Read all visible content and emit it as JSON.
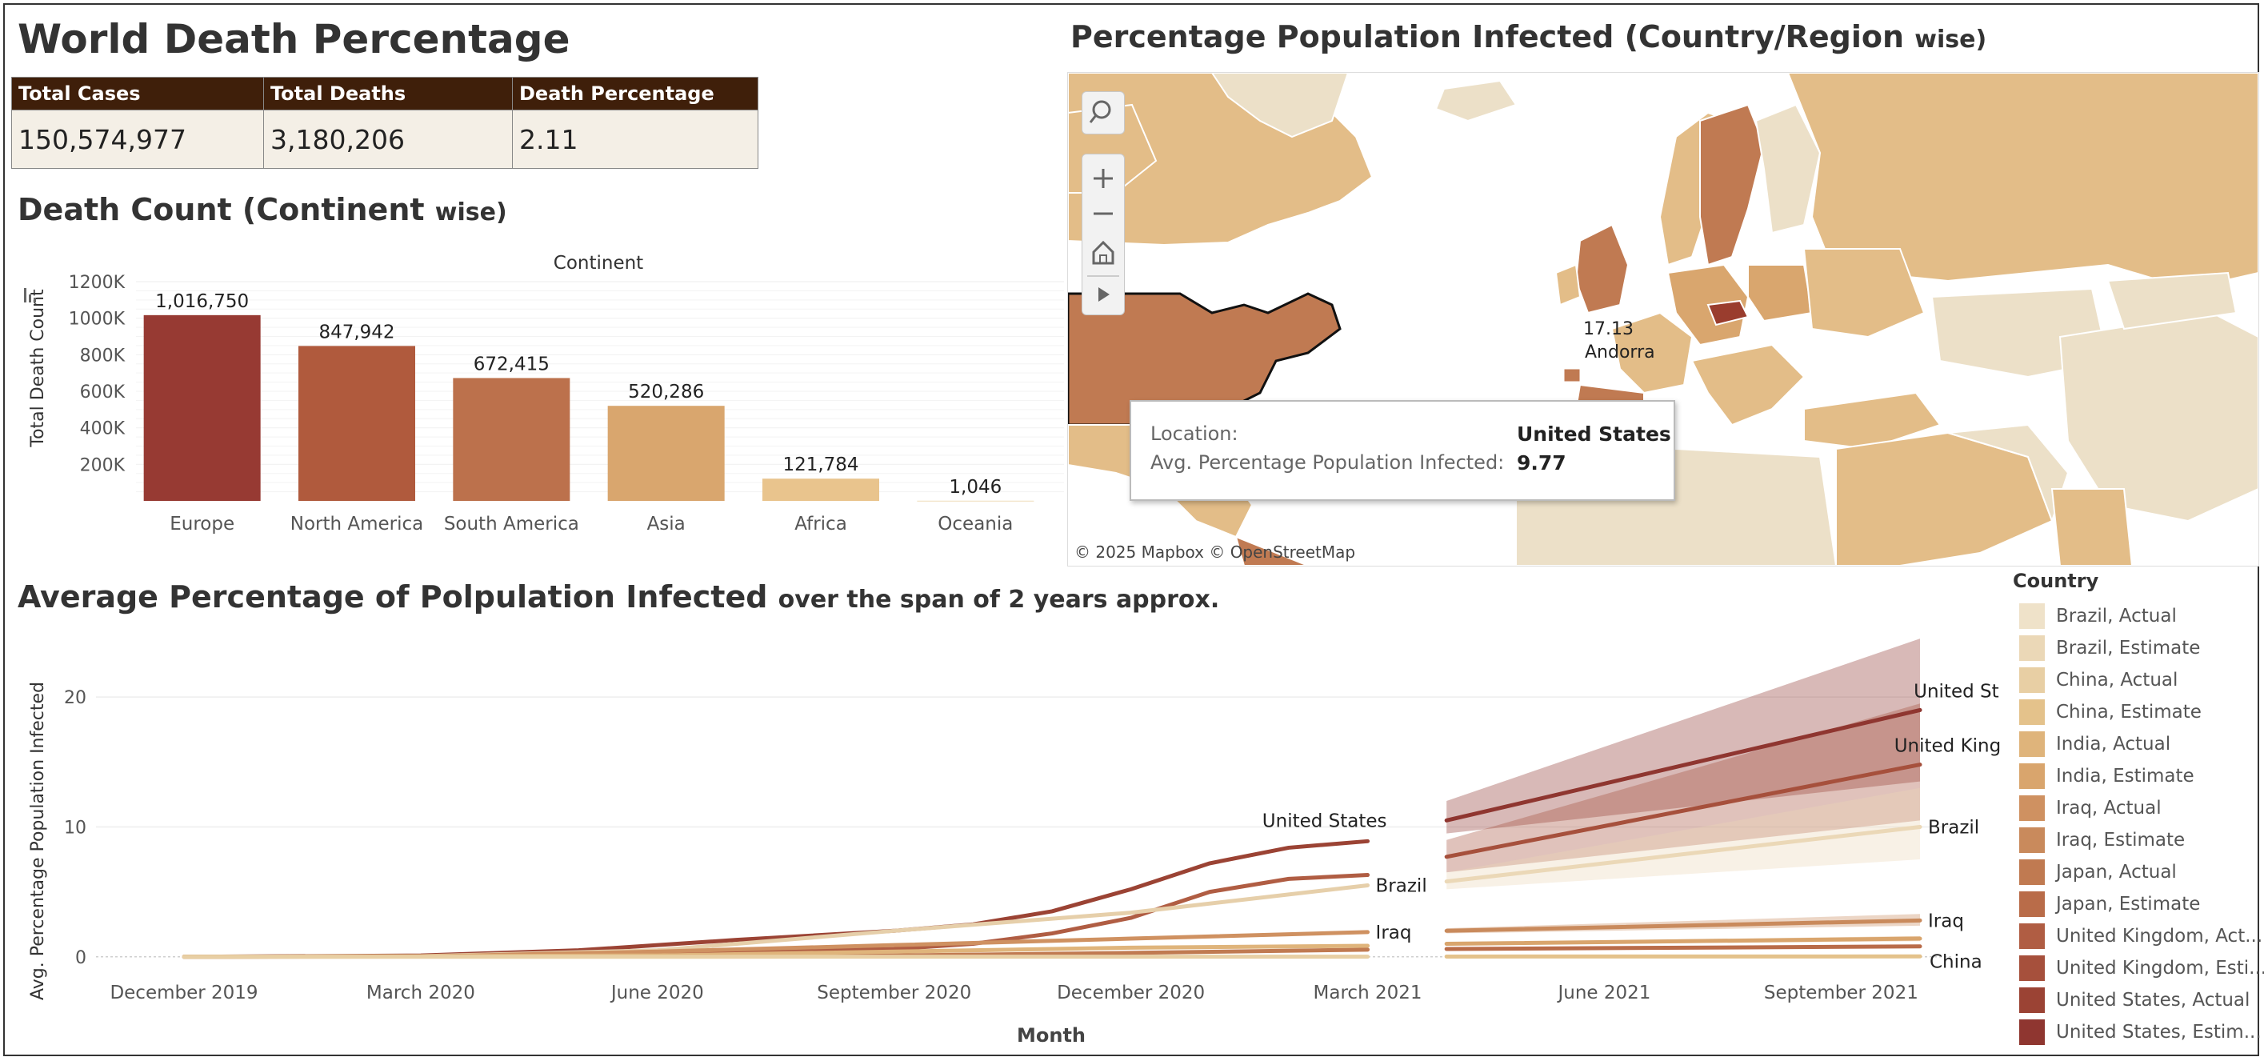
{
  "dashboard": {
    "title": "World Death Percentage",
    "kpi": {
      "headers": [
        "Total Cases",
        "Total Deaths",
        "Death Percentage"
      ],
      "values": [
        "150,574,977",
        "3,180,206",
        "2.11"
      ]
    },
    "continent_title_bold": "Death Count (Continent",
    "continent_title_small": "wise)",
    "map_title_bold": "Percentage Population Infected (Country/Region",
    "map_title_small": "wise)",
    "line_title_bold": "Average Percentage of Polpulation Infected",
    "line_title_small": "over the span of 2 years approx."
  },
  "map": {
    "label_value": "17.13",
    "label_country": "Andorra",
    "attribution": "© 2025 Mapbox  © OpenStreetMap",
    "controls": [
      "search-icon",
      "zoom-in-icon",
      "zoom-out-icon",
      "home-icon",
      "play-icon"
    ],
    "tooltip": {
      "location_label": "Location:",
      "location_value": "United States",
      "metric_label": "Avg. Percentage Population Infected:",
      "metric_value": "9.77"
    },
    "colors": {
      "low": "#ece0c8",
      "mid": "#e3bd88",
      "high": "#c07a52",
      "dark": "#9a3d2e"
    }
  },
  "legend": {
    "title": "Country",
    "items": [
      {
        "label": "Brazil, Actual",
        "color": "#efe2c9"
      },
      {
        "label": "Brazil, Estimate",
        "color": "#ebd8b7"
      },
      {
        "label": "China, Actual",
        "color": "#e8cfa4"
      },
      {
        "label": "China, Estimate",
        "color": "#e4c28b"
      },
      {
        "label": "India, Actual",
        "color": "#dfb47b"
      },
      {
        "label": "India, Estimate",
        "color": "#d9a56d"
      },
      {
        "label": "Iraq, Actual",
        "color": "#cf9161"
      },
      {
        "label": "Iraq, Estimate",
        "color": "#c98a5c"
      },
      {
        "label": "Japan, Actual",
        "color": "#c07a51"
      },
      {
        "label": "Japan, Estimate",
        "color": "#b96c49"
      },
      {
        "label": "United Kingdom, Act...",
        "color": "#b05d43"
      },
      {
        "label": "United Kingdom, Esti...",
        "color": "#a6503c"
      },
      {
        "label": "United States, Actual",
        "color": "#9b4334"
      },
      {
        "label": "United States, Estim...",
        "color": "#8f3630"
      }
    ]
  },
  "chart_data": [
    {
      "type": "bar",
      "title": "Continent",
      "xlabel": "",
      "ylabel": "Total Death Count",
      "ylim": [
        0,
        1200000
      ],
      "yticks": [
        200000,
        400000,
        600000,
        800000,
        1000000,
        1200000
      ],
      "ytick_labels": [
        "200K",
        "400K",
        "600K",
        "800K",
        "1000K",
        "1200K"
      ],
      "categories": [
        "Europe",
        "North America",
        "South America",
        "Asia",
        "Africa",
        "Oceania"
      ],
      "values": [
        1016750,
        847942,
        672415,
        520286,
        121784,
        1046
      ],
      "value_labels": [
        "1,016,750",
        "847,942",
        "672,415",
        "520,286",
        "121,784",
        "1,046"
      ],
      "colors": [
        "#973a33",
        "#b05a3d",
        "#bc714c",
        "#d9a66e",
        "#e9c48d",
        "#efddb9"
      ]
    },
    {
      "type": "line",
      "xlabel": "Month",
      "ylabel": "Avg. Percentage Population Infected",
      "ylim": [
        -1,
        25
      ],
      "yticks": [
        0,
        10,
        20
      ],
      "xticks": [
        "2019-12",
        "2020-03",
        "2020-06",
        "2020-09",
        "2020-12",
        "2021-03",
        "2021-06",
        "2021-09"
      ],
      "xtick_labels": [
        "December 2019",
        "March 2020",
        "June 2020",
        "September 2020",
        "December 2020",
        "March 2021",
        "June 2021",
        "September 2021"
      ],
      "x_range": [
        "2019-12",
        "2021-10"
      ],
      "series": [
        {
          "name": "United States",
          "kind": "actual",
          "color": "#9b4334",
          "x": [
            "2019-12",
            "2020-03",
            "2020-05",
            "2020-07",
            "2020-09",
            "2020-10",
            "2020-11",
            "2020-12",
            "2021-01",
            "2021-02",
            "2021-03"
          ],
          "values": [
            0,
            0.1,
            0.5,
            1.3,
            2.0,
            2.5,
            3.5,
            5.2,
            7.2,
            8.4,
            8.9
          ],
          "end_label": "United States"
        },
        {
          "name": "United Kingdom",
          "kind": "actual",
          "color": "#b05d43",
          "x": [
            "2019-12",
            "2020-03",
            "2020-06",
            "2020-09",
            "2020-10",
            "2020-11",
            "2020-12",
            "2021-01",
            "2021-02",
            "2021-03"
          ],
          "values": [
            0,
            0.05,
            0.3,
            0.6,
            1.0,
            1.8,
            3.0,
            5.0,
            6.0,
            6.3
          ]
        },
        {
          "name": "Brazil",
          "kind": "actual",
          "color": "#e6cfaa",
          "x": [
            "2019-12",
            "2020-03",
            "2020-06",
            "2020-09",
            "2020-12",
            "2021-03"
          ],
          "values": [
            0,
            0.05,
            0.5,
            2.0,
            3.4,
            5.5
          ],
          "end_label": "Brazil"
        },
        {
          "name": "Iraq",
          "kind": "actual",
          "color": "#cf9161",
          "x": [
            "2019-12",
            "2020-03",
            "2020-06",
            "2020-09",
            "2020-12",
            "2021-03"
          ],
          "values": [
            0,
            0.02,
            0.4,
            0.9,
            1.4,
            1.9
          ],
          "end_label": "Iraq"
        },
        {
          "name": "Japan",
          "kind": "actual",
          "color": "#c07a51",
          "x": [
            "2019-12",
            "2020-06",
            "2020-09",
            "2020-12",
            "2021-03"
          ],
          "values": [
            0,
            0.05,
            0.1,
            0.3,
            0.55
          ]
        },
        {
          "name": "India",
          "kind": "actual",
          "color": "#dfb47b",
          "x": [
            "2019-12",
            "2020-06",
            "2020-09",
            "2020-12",
            "2021-03"
          ],
          "values": [
            0,
            0.1,
            0.4,
            0.7,
            0.85
          ]
        },
        {
          "name": "China",
          "kind": "actual",
          "color": "#e8cfa4",
          "x": [
            "2019-12",
            "2021-03"
          ],
          "values": [
            0,
            0.01
          ]
        },
        {
          "name": "United States",
          "kind": "estimate",
          "color": "#8f3630",
          "x": [
            "2021-04",
            "2021-10"
          ],
          "values": [
            10.5,
            19
          ],
          "band_lower": [
            9.5,
            13.5
          ],
          "band_upper": [
            12.0,
            24.5
          ],
          "end_label": "United States"
        },
        {
          "name": "United Kingdom",
          "kind": "estimate",
          "color": "#a6503c",
          "x": [
            "2021-04",
            "2021-10"
          ],
          "values": [
            7.7,
            14.8
          ],
          "band_lower": [
            6.5,
            10.5
          ],
          "band_upper": [
            9.0,
            19.5
          ],
          "end_label": "United Kingdom"
        },
        {
          "name": "Brazil",
          "kind": "estimate",
          "color": "#ebd8b7",
          "x": [
            "2021-04",
            "2021-10"
          ],
          "values": [
            5.8,
            10.0
          ],
          "band_lower": [
            5.2,
            7.5
          ],
          "band_upper": [
            6.5,
            13.0
          ],
          "end_label": "Brazil"
        },
        {
          "name": "Iraq",
          "kind": "estimate",
          "color": "#c98a5c",
          "x": [
            "2021-04",
            "2021-10"
          ],
          "values": [
            2.0,
            2.8
          ],
          "band_lower": [
            1.8,
            2.4
          ],
          "band_upper": [
            2.2,
            3.3
          ],
          "end_label": "Iraq"
        },
        {
          "name": "India",
          "kind": "estimate",
          "color": "#d9a56d",
          "x": [
            "2021-04",
            "2021-10"
          ],
          "values": [
            1.0,
            1.4
          ],
          "band_lower": [
            0.9,
            1.2
          ],
          "band_upper": [
            1.1,
            1.6
          ]
        },
        {
          "name": "Japan",
          "kind": "estimate",
          "color": "#b96c49",
          "x": [
            "2021-04",
            "2021-10"
          ],
          "values": [
            0.6,
            0.8
          ],
          "band_lower": [
            0.55,
            0.7
          ],
          "band_upper": [
            0.65,
            0.9
          ]
        },
        {
          "name": "China",
          "kind": "estimate",
          "color": "#e4c28b",
          "x": [
            "2021-04",
            "2021-10"
          ],
          "values": [
            0.02,
            0.03
          ],
          "band_lower": [
            0.0,
            0.0
          ],
          "band_upper": [
            0.05,
            0.06
          ],
          "end_label": "China"
        }
      ]
    }
  ]
}
